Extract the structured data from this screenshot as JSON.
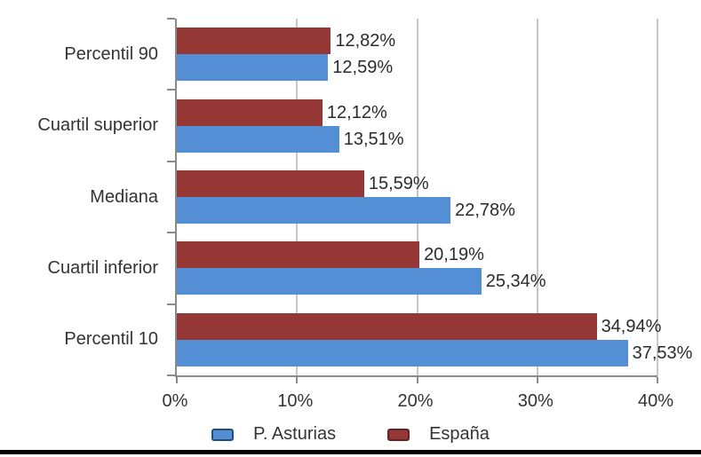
{
  "chart_data": {
    "type": "bar",
    "orientation": "horizontal",
    "title": "",
    "categories": [
      "Percentil 90",
      "Cuartil superior",
      "Mediana",
      "Cuartil inferior",
      "Percentil 10"
    ],
    "series": [
      {
        "name": "P. Asturias",
        "key": "p-asturias",
        "color": "#548ED4",
        "legend_border_color": "#1f4e79",
        "values": [
          12.59,
          13.51,
          22.78,
          25.34,
          37.53
        ],
        "labels": [
          "12,59%",
          "13,51%",
          "22,78%",
          "25,34%",
          "37,53%"
        ]
      },
      {
        "name": "España",
        "key": "espana",
        "color": "#953735",
        "legend_border_color": "#632423",
        "values": [
          12.82,
          12.12,
          15.59,
          20.19,
          34.94
        ],
        "labels": [
          "12,82%",
          "12,12%",
          "15,59%",
          "20,19%",
          "34,94%"
        ]
      }
    ],
    "row_order_top_to_bottom": [
      "España",
      "P. Asturias"
    ],
    "x_axis": {
      "min": 0,
      "max": 40,
      "ticks": [
        "0%",
        "10%",
        "20%",
        "30%",
        "40%"
      ]
    },
    "grid": true,
    "legend": {
      "position": "bottom",
      "entries": [
        "P. Asturias",
        "España"
      ]
    }
  },
  "colors": {
    "axis_line": "#8a8a8a",
    "gridline": "#c6c6c6",
    "text": "#333333",
    "background": "#ffffff",
    "bottom_strip": "#000000"
  }
}
